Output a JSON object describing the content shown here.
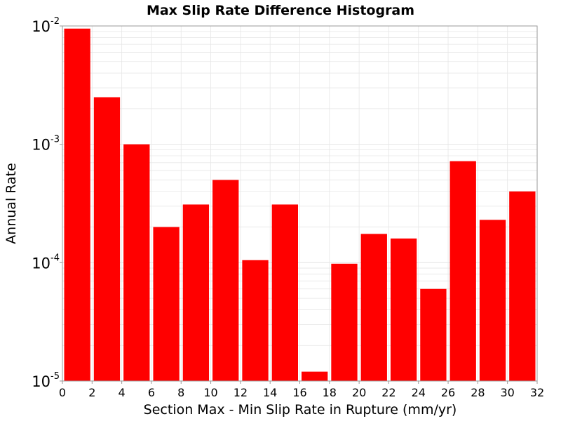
{
  "chart_data": {
    "type": "bar",
    "title": "Max Slip Rate Difference Histogram",
    "xlabel": "Section Max - Min Slip Rate in Rupture (mm/yr)",
    "ylabel": "Annual Rate",
    "xlim": [
      0,
      32
    ],
    "ylim": [
      1e-05,
      0.01
    ],
    "yscale": "log",
    "grid": true,
    "bar_color": "#ff0000",
    "bin_width": 2,
    "bins": [
      {
        "x_start": 0,
        "value": 0.0095
      },
      {
        "x_start": 2,
        "value": 0.0025
      },
      {
        "x_start": 4,
        "value": 0.001
      },
      {
        "x_start": 6,
        "value": 0.0002
      },
      {
        "x_start": 8,
        "value": 0.00031
      },
      {
        "x_start": 10,
        "value": 0.0005
      },
      {
        "x_start": 12,
        "value": 0.000105
      },
      {
        "x_start": 14,
        "value": 0.00031
      },
      {
        "x_start": 16,
        "value": 1.2e-05
      },
      {
        "x_start": 18,
        "value": 9.8e-05
      },
      {
        "x_start": 20,
        "value": 0.000175
      },
      {
        "x_start": 22,
        "value": 0.00016
      },
      {
        "x_start": 24,
        "value": 6e-05
      },
      {
        "x_start": 26,
        "value": 0.00072
      },
      {
        "x_start": 28,
        "value": 0.00023
      },
      {
        "x_start": 30,
        "value": 0.0004
      }
    ],
    "x_ticks": [
      "0",
      "2",
      "4",
      "6",
      "8",
      "10",
      "12",
      "14",
      "16",
      "18",
      "20",
      "22",
      "24",
      "26",
      "28",
      "30",
      "32"
    ],
    "y_ticks": [
      {
        "value": 0.01,
        "base": "10",
        "exp": "-2"
      },
      {
        "value": 0.001,
        "base": "10",
        "exp": "-3"
      },
      {
        "value": 0.0001,
        "base": "10",
        "exp": "-4"
      },
      {
        "value": 1e-05,
        "base": "10",
        "exp": "-5"
      }
    ]
  }
}
